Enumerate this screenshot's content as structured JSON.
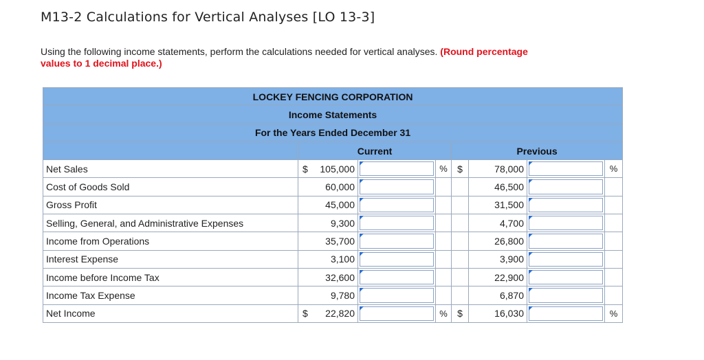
{
  "header": {
    "title": "M13-2 Calculations for Vertical Analyses [LO 13-3]"
  },
  "instructions": {
    "text": "Using the following income statements, perform the calculations needed for vertical analyses. ",
    "emphasis": "(Round percentage values to 1 decimal place.)"
  },
  "statement": {
    "company": "LOCKEY FENCING CORPORATION",
    "statement_name": "Income Statements",
    "period": "For the Years Ended December 31",
    "col_current": "Current",
    "col_previous": "Previous",
    "dollar_sign": "$",
    "percent_sign": "%",
    "rows": [
      {
        "label": "Net Sales",
        "current": "105,000",
        "previous": "78,000",
        "current_pct": "",
        "previous_pct": ""
      },
      {
        "label": "Cost of Goods Sold",
        "current": "60,000",
        "previous": "46,500",
        "current_pct": "",
        "previous_pct": ""
      },
      {
        "label": "Gross Profit",
        "current": "45,000",
        "previous": "31,500",
        "current_pct": "",
        "previous_pct": ""
      },
      {
        "label": "Selling, General, and Administrative Expenses",
        "current": "9,300",
        "previous": "4,700",
        "current_pct": "",
        "previous_pct": ""
      },
      {
        "label": "Income from Operations",
        "current": "35,700",
        "previous": "26,800",
        "current_pct": "",
        "previous_pct": ""
      },
      {
        "label": "Interest Expense",
        "current": "3,100",
        "previous": "3,900",
        "current_pct": "",
        "previous_pct": ""
      },
      {
        "label": "Income before Income Tax",
        "current": "32,600",
        "previous": "22,900",
        "current_pct": "",
        "previous_pct": ""
      },
      {
        "label": "Income Tax Expense",
        "current": "9,780",
        "previous": "6,870",
        "current_pct": "",
        "previous_pct": ""
      },
      {
        "label": "Net Income",
        "current": "22,820",
        "previous": "16,030",
        "current_pct": "",
        "previous_pct": ""
      }
    ]
  }
}
